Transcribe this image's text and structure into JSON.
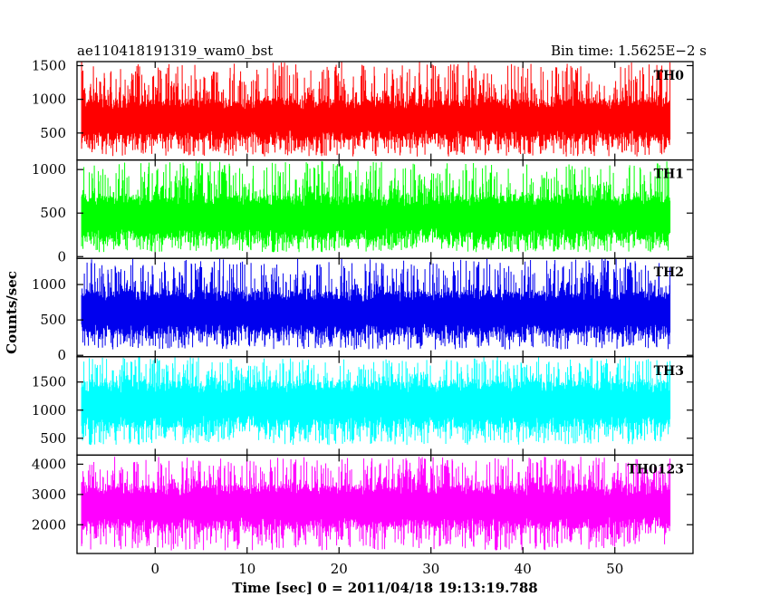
{
  "header": {
    "left_title": "ae110418191319_wam0_bst",
    "right_title": "Bin time: 1.5625E−2 s"
  },
  "chart_data": {
    "type": "line",
    "ylabel": "Counts/sec",
    "xlabel": "Time [sec] 0 = 2011/04/18 19:13:19.788",
    "x_range": [
      -8.5,
      58.5
    ],
    "x_data_range": [
      -8.0,
      56.0
    ],
    "x_ticks": [
      0,
      10,
      20,
      30,
      40,
      50
    ],
    "x_tick_labels": [
      "0",
      "10",
      "20",
      "30",
      "40",
      "50"
    ],
    "grid": false,
    "panels": [
      {
        "name": "TH0",
        "color": "#ff0000",
        "ylim": [
          100,
          1560
        ],
        "yticks": [
          500,
          1000,
          1500
        ],
        "ytick_labels": [
          "500",
          "1000",
          "1500"
        ],
        "band": [
          400,
          1000
        ],
        "envelope": [
          150,
          1560
        ]
      },
      {
        "name": "TH1",
        "color": "#00ff00",
        "ylim": [
          -20,
          1110
        ],
        "yticks": [
          0,
          500,
          1000
        ],
        "ytick_labels": [
          "0",
          "500",
          "1000"
        ],
        "band": [
          200,
          700
        ],
        "envelope": [
          50,
          1100
        ]
      },
      {
        "name": "TH2",
        "color": "#0000ee",
        "ylim": [
          -20,
          1370
        ],
        "yticks": [
          0,
          500,
          1000
        ],
        "ytick_labels": [
          "0",
          "500",
          "1000"
        ],
        "band": [
          300,
          900
        ],
        "envelope": [
          80,
          1370
        ]
      },
      {
        "name": "TH3",
        "color": "#00ffff",
        "ylim": [
          200,
          1950
        ],
        "yticks": [
          500,
          1000,
          1500
        ],
        "ytick_labels": [
          "500",
          "1000",
          "1500"
        ],
        "band": [
          700,
          1500
        ],
        "envelope": [
          380,
          1950
        ]
      },
      {
        "name": "TH0123",
        "color": "#ff00ff",
        "ylim": [
          1050,
          4300
        ],
        "yticks": [
          2000,
          3000,
          4000
        ],
        "ytick_labels": [
          "2000",
          "3000",
          "4000"
        ],
        "band": [
          1900,
          3300
        ],
        "envelope": [
          1150,
          4250
        ]
      }
    ]
  }
}
